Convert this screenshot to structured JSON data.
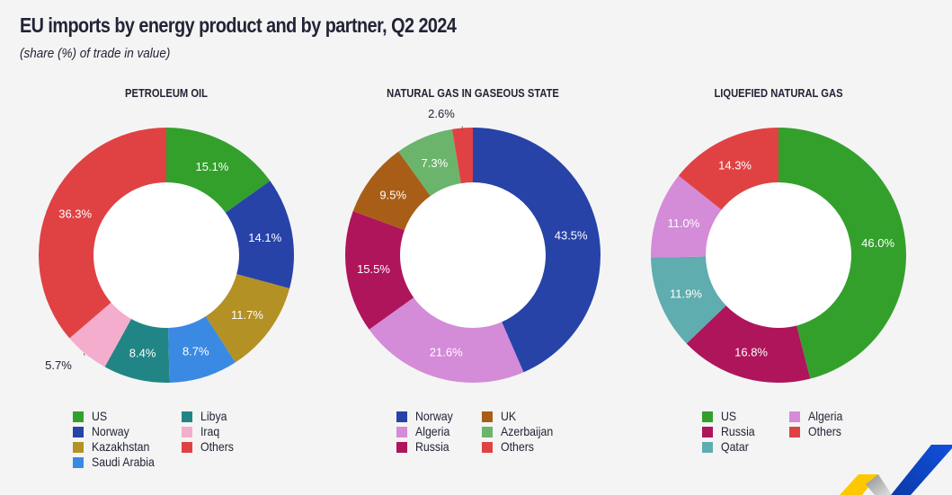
{
  "header": {
    "title": "EU imports by energy product and by partner, Q2 2024",
    "subtitle": "(share (%) of trade in value)"
  },
  "colors": {
    "background": "#f4f4f4",
    "label_dark": "#222436",
    "label_light": "#ffffff"
  },
  "chart_data": [
    {
      "type": "pie",
      "variant": "donut",
      "title": "PETROLEUM OIL",
      "start": "12 o'clock, clockwise",
      "slices": [
        {
          "name": "US",
          "value": 15.1,
          "label": "15.1%",
          "color": "#33a02c"
        },
        {
          "name": "Norway",
          "value": 14.1,
          "label": "14.1%",
          "color": "#2743a8"
        },
        {
          "name": "Kazakhstan",
          "value": 11.7,
          "label": "11.7%",
          "color": "#b39125"
        },
        {
          "name": "Saudi Arabia",
          "value": 8.7,
          "label": "8.7%",
          "color": "#3a89e3"
        },
        {
          "name": "Libya",
          "value": 8.4,
          "label": "8.4%",
          "color": "#228585"
        },
        {
          "name": "Iraq",
          "value": 5.7,
          "label": "5.7%",
          "color": "#f4adcc",
          "label_outside": true
        },
        {
          "name": "Others",
          "value": 36.3,
          "label": "36.3%",
          "color": "#e04244"
        }
      ],
      "legend": [
        [
          "US",
          "Libya"
        ],
        [
          "Norway",
          "Iraq"
        ],
        [
          "Kazakhstan",
          "Others"
        ],
        [
          "Saudi Arabia"
        ]
      ]
    },
    {
      "type": "pie",
      "variant": "donut",
      "title": "NATURAL GAS IN GASEOUS STATE",
      "start": "12 o'clock, clockwise",
      "slices": [
        {
          "name": "Norway",
          "value": 43.5,
          "label": "43.5%",
          "color": "#2743a8"
        },
        {
          "name": "Algeria",
          "value": 21.6,
          "label": "21.6%",
          "color": "#d48bd8"
        },
        {
          "name": "Russia",
          "value": 15.5,
          "label": "15.5%",
          "color": "#ae155b"
        },
        {
          "name": "UK",
          "value": 9.5,
          "label": "9.5%",
          "color": "#a95e18"
        },
        {
          "name": "Azerbaijan",
          "value": 7.3,
          "label": "7.3%",
          "color": "#6bb46c"
        },
        {
          "name": "Others",
          "value": 2.6,
          "label": "2.6%",
          "color": "#e04244",
          "label_outside": true
        }
      ],
      "legend": [
        [
          "Norway",
          "UK"
        ],
        [
          "Algeria",
          "Azerbaijan"
        ],
        [
          "Russia",
          "Others"
        ]
      ]
    },
    {
      "type": "pie",
      "variant": "donut",
      "title": "LIQUEFIED NATURAL GAS",
      "start": "12 o'clock, clockwise",
      "slices": [
        {
          "name": "US",
          "value": 46.0,
          "label": "46.0%",
          "color": "#33a02c"
        },
        {
          "name": "Russia",
          "value": 16.8,
          "label": "16.8%",
          "color": "#ae155b"
        },
        {
          "name": "Qatar",
          "value": 11.9,
          "label": "11.9%",
          "color": "#5fadae"
        },
        {
          "name": "Algeria",
          "value": 11.0,
          "label": "11.0%",
          "color": "#d48bd8"
        },
        {
          "name": "Others",
          "value": 14.3,
          "label": "14.3%",
          "color": "#e04244"
        }
      ],
      "legend": [
        [
          "US",
          "Algeria"
        ],
        [
          "Russia",
          "Others"
        ],
        [
          "Qatar"
        ]
      ]
    }
  ],
  "logo": {
    "name": "Eurostat",
    "colors": {
      "yellow": "#fdc800",
      "grey": "#b8b8b8",
      "blue": "#0e47cb"
    }
  }
}
